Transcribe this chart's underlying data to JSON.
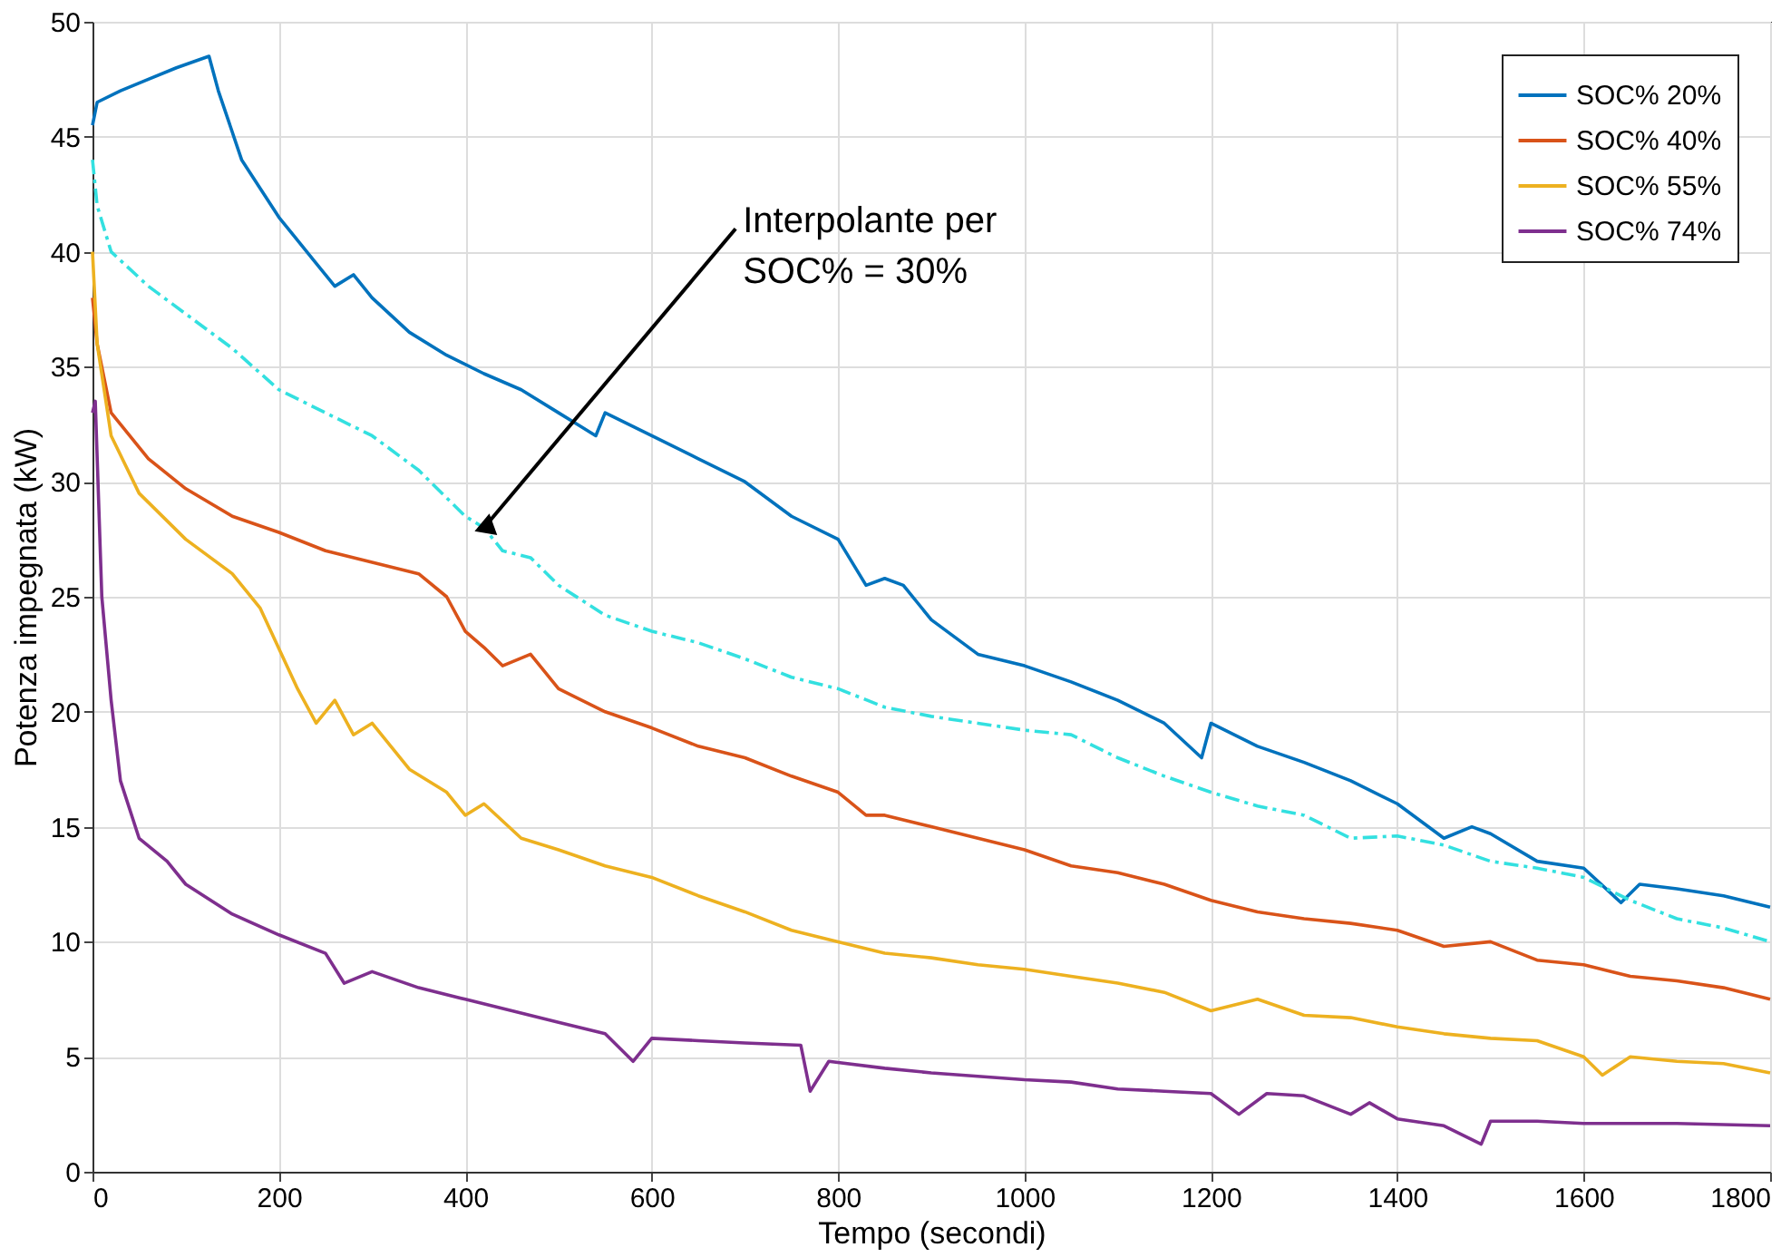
{
  "chart_data": {
    "type": "line",
    "xlabel": "Tempo (secondi)",
    "ylabel": "Potenza impegnata (kW)",
    "xlim": [
      0,
      1800
    ],
    "ylim": [
      0,
      50
    ],
    "xticks": [
      0,
      200,
      400,
      600,
      800,
      1000,
      1200,
      1400,
      1600,
      1800
    ],
    "yticks": [
      0,
      5,
      10,
      15,
      20,
      25,
      30,
      35,
      40,
      45,
      50
    ],
    "grid": true,
    "legend": "top right",
    "marker": "none",
    "series": [
      {
        "name": "SOC% 20%",
        "color": "#0072bd",
        "line_style": "solid",
        "x": [
          0,
          5,
          30,
          60,
          90,
          125,
          135,
          160,
          200,
          240,
          260,
          280,
          300,
          340,
          380,
          420,
          460,
          500,
          520,
          540,
          550,
          600,
          650,
          700,
          750,
          800,
          830,
          850,
          870,
          900,
          950,
          1000,
          1050,
          1100,
          1150,
          1190,
          1200,
          1250,
          1300,
          1350,
          1400,
          1450,
          1480,
          1500,
          1550,
          1600,
          1640,
          1660,
          1700,
          1750,
          1800
        ],
        "values": [
          45.5,
          46.5,
          47,
          47.5,
          48,
          48.5,
          47,
          44,
          41.5,
          39.5,
          38.5,
          39,
          38,
          36.5,
          35.5,
          34.7,
          34,
          33,
          32.5,
          32,
          33,
          32,
          31,
          30,
          28.5,
          27.5,
          25.5,
          25.8,
          25.5,
          24,
          22.5,
          22,
          21.3,
          20.5,
          19.5,
          18,
          19.5,
          18.5,
          17.8,
          17,
          16,
          14.5,
          15,
          14.7,
          13.5,
          13.2,
          11.7,
          12.5,
          12.3,
          12,
          11.5
        ]
      },
      {
        "name": "SOC% 40%",
        "color": "#d95319",
        "line_style": "solid",
        "x": [
          0,
          5,
          20,
          60,
          100,
          150,
          200,
          250,
          300,
          350,
          380,
          400,
          420,
          440,
          470,
          500,
          550,
          600,
          650,
          700,
          750,
          800,
          830,
          850,
          900,
          950,
          1000,
          1050,
          1100,
          1150,
          1200,
          1250,
          1300,
          1350,
          1400,
          1450,
          1500,
          1550,
          1600,
          1650,
          1700,
          1750,
          1800
        ],
        "values": [
          38,
          36,
          33,
          31,
          29.7,
          28.5,
          27.8,
          27,
          26.5,
          26,
          25,
          23.5,
          22.8,
          22,
          22.5,
          21,
          20,
          19.3,
          18.5,
          18,
          17.2,
          16.5,
          15.5,
          15.5,
          15,
          14.5,
          14,
          13.3,
          13,
          12.5,
          11.8,
          11.3,
          11,
          10.8,
          10.5,
          9.8,
          10,
          9.2,
          9,
          8.5,
          8.3,
          8,
          7.5
        ]
      },
      {
        "name": "SOC% 55%",
        "color": "#edb120",
        "line_style": "solid",
        "x": [
          0,
          5,
          20,
          50,
          100,
          150,
          180,
          220,
          240,
          260,
          280,
          300,
          340,
          380,
          400,
          420,
          460,
          500,
          550,
          600,
          650,
          700,
          750,
          800,
          850,
          900,
          950,
          1000,
          1050,
          1100,
          1150,
          1200,
          1250,
          1300,
          1350,
          1400,
          1450,
          1500,
          1550,
          1600,
          1620,
          1650,
          1700,
          1750,
          1800
        ],
        "values": [
          40,
          36,
          32,
          29.5,
          27.5,
          26,
          24.5,
          21,
          19.5,
          20.5,
          19,
          19.5,
          17.5,
          16.5,
          15.5,
          16,
          14.5,
          14,
          13.3,
          12.8,
          12,
          11.3,
          10.5,
          10,
          9.5,
          9.3,
          9,
          8.8,
          8.5,
          8.2,
          7.8,
          7,
          7.5,
          6.8,
          6.7,
          6.3,
          6,
          5.8,
          5.7,
          5,
          4.2,
          5,
          4.8,
          4.7,
          4.3
        ]
      },
      {
        "name": "SOC% 74%",
        "color": "#7e2f8e",
        "line_style": "solid",
        "x": [
          0,
          3,
          10,
          20,
          30,
          50,
          80,
          100,
          150,
          200,
          250,
          270,
          300,
          350,
          400,
          450,
          500,
          550,
          580,
          600,
          650,
          700,
          760,
          770,
          790,
          850,
          900,
          1000,
          1050,
          1100,
          1150,
          1200,
          1230,
          1260,
          1300,
          1350,
          1370,
          1400,
          1450,
          1490,
          1500,
          1550,
          1600,
          1700,
          1800
        ],
        "values": [
          33,
          33.5,
          25,
          20.5,
          17,
          14.5,
          13.5,
          12.5,
          11.2,
          10.3,
          9.5,
          8.2,
          8.7,
          8,
          7.5,
          7,
          6.5,
          6,
          4.8,
          5.8,
          5.7,
          5.6,
          5.5,
          3.5,
          4.8,
          4.5,
          4.3,
          4,
          3.9,
          3.6,
          3.5,
          3.4,
          2.5,
          3.4,
          3.3,
          2.5,
          3,
          2.3,
          2,
          1.2,
          2.2,
          2.2,
          2.1,
          2.1,
          2
        ]
      },
      {
        "color": "#33e0e0",
        "line_style": "dashed",
        "x": [
          0,
          5,
          20,
          60,
          100,
          150,
          200,
          250,
          300,
          350,
          400,
          420,
          440,
          470,
          500,
          550,
          600,
          650,
          700,
          750,
          800,
          850,
          900,
          950,
          1000,
          1050,
          1100,
          1150,
          1200,
          1250,
          1300,
          1350,
          1400,
          1450,
          1500,
          1550,
          1600,
          1650,
          1700,
          1750,
          1800
        ],
        "values": [
          44,
          42,
          40,
          38.5,
          37.3,
          35.8,
          34,
          33,
          32,
          30.5,
          28.5,
          28,
          27,
          26.7,
          25.5,
          24.2,
          23.5,
          23,
          22.3,
          21.5,
          21,
          20.2,
          19.8,
          19.5,
          19.2,
          19,
          18,
          17.2,
          16.5,
          15.9,
          15.5,
          14.5,
          14.6,
          14.2,
          13.5,
          13.2,
          12.8,
          11.8,
          11,
          10.6,
          10
        ]
      }
    ],
    "annotations": [
      {
        "text": "Interpolante  per\nSOC% = 30%",
        "x": 420,
        "y": 28
      }
    ]
  }
}
